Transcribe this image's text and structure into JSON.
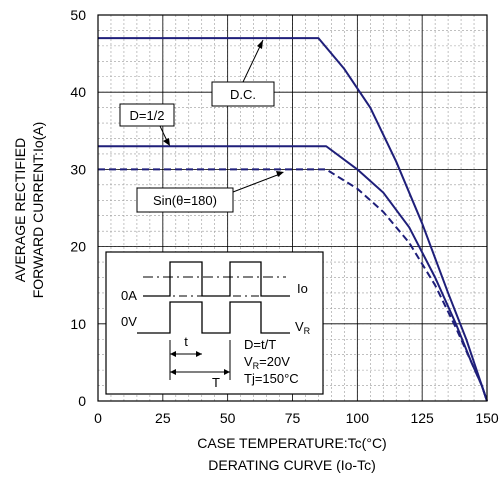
{
  "chart_data": {
    "type": "line",
    "xlabel": "CASE TEMPERATURE:Tc(°C)",
    "subtitle": "DERATING CURVE (Io-Tc)",
    "ylabel_line1": "AVERAGE RECTIFIED",
    "ylabel_line2": "FORWARD CURRENT:Io(A)",
    "xlim": [
      0,
      150
    ],
    "ylim": [
      0,
      50
    ],
    "xticks": [
      "0",
      "25",
      "50",
      "75",
      "100",
      "125",
      "150"
    ],
    "xtick_values": [
      0,
      25,
      50,
      75,
      100,
      125,
      150
    ],
    "yticks": [
      "0",
      "10",
      "20",
      "30",
      "40",
      "50"
    ],
    "ytick_values": [
      0,
      10,
      20,
      30,
      40,
      50
    ],
    "x_minor_step": 5,
    "y_minor_step": 2,
    "grid": true,
    "series": [
      {
        "name": "D.C.",
        "color": "#1f1f7a",
        "dashed": false,
        "points": [
          [
            0,
            47
          ],
          [
            85,
            47
          ],
          [
            95,
            43
          ],
          [
            105,
            38
          ],
          [
            115,
            31
          ],
          [
            125,
            23
          ],
          [
            135,
            14
          ],
          [
            142,
            8
          ],
          [
            147,
            3
          ],
          [
            150,
            0
          ]
        ]
      },
      {
        "name": "D=1/2",
        "color": "#1f1f7a",
        "dashed": false,
        "points": [
          [
            0,
            33
          ],
          [
            88,
            33
          ],
          [
            100,
            30
          ],
          [
            110,
            27
          ],
          [
            120,
            22.5
          ],
          [
            130,
            16
          ],
          [
            138,
            10
          ],
          [
            144,
            5
          ],
          [
            148,
            2
          ],
          [
            150,
            0
          ]
        ]
      },
      {
        "name": "Sin(θ=180)",
        "color": "#1f1f7a",
        "dashed": true,
        "points": [
          [
            0,
            30
          ],
          [
            88,
            30
          ],
          [
            100,
            27.5
          ],
          [
            110,
            24.5
          ],
          [
            120,
            20.5
          ],
          [
            130,
            15
          ],
          [
            138,
            9.5
          ],
          [
            144,
            5
          ],
          [
            148,
            2
          ],
          [
            150,
            0
          ]
        ]
      }
    ],
    "annotations": [
      {
        "label": "D.C.",
        "target": [
          72,
          47
        ]
      },
      {
        "label": "D=1/2",
        "target": [
          45,
          33
        ]
      },
      {
        "label": "Sin(θ=180)",
        "target": [
          78,
          30
        ]
      }
    ],
    "inset": {
      "label_0A": "0A",
      "label_0V": "0V",
      "label_Io": "Io",
      "label_VR_main": "V",
      "label_VR_sub": "R",
      "label_t": "t",
      "label_T": "T",
      "formula1": "D=t/T",
      "formula2_main": "V",
      "formula2_sub": "R",
      "formula2_rest": "=20V",
      "formula3": "Tj=150°C"
    }
  }
}
